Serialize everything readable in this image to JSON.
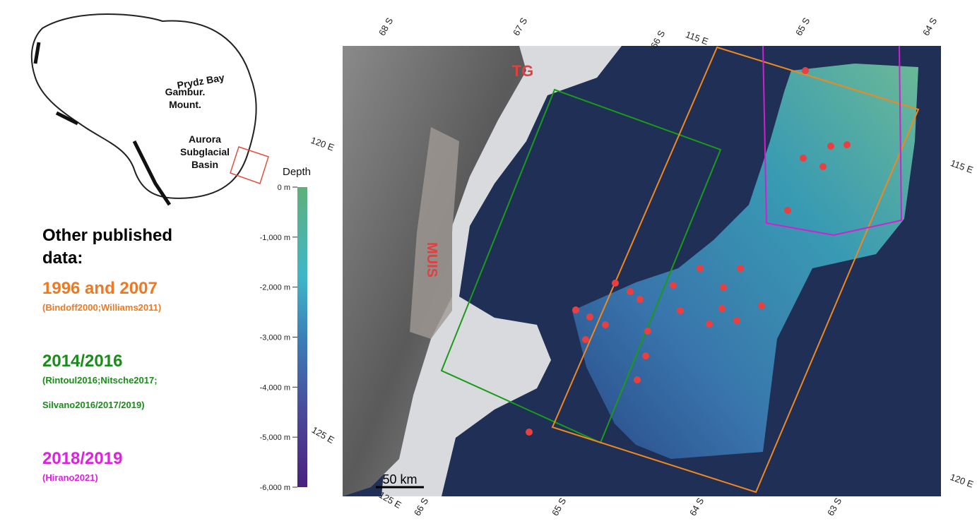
{
  "inset": {
    "labels": {
      "prydz": "Prydz Bay",
      "gambur": [
        "Gambur.",
        "Mount."
      ],
      "aurora": [
        "Aurora",
        "Subglacial",
        "Basin"
      ]
    }
  },
  "legend": {
    "title": [
      "Other published",
      "data:"
    ],
    "entries": [
      {
        "name": "1996 and 2007",
        "refs": [
          "(Bindoff2000;Williams2011)"
        ],
        "color": "#f07820"
      },
      {
        "name": "2014/2016",
        "refs": [
          "(Rintoul2016;Nitsche2017;",
          "Silvano2016/2017/2019)"
        ],
        "color": "#1a8c1a"
      },
      {
        "name": "2018/2019",
        "refs": [
          "(Hirano2021)"
        ],
        "color": "#e020e0"
      }
    ]
  },
  "colorbar": {
    "title": "Depth",
    "ticks": [
      {
        "value": 0,
        "label": "0 m"
      },
      {
        "value": -1000,
        "label": "-1,000 m"
      },
      {
        "value": -2000,
        "label": "-2,000 m"
      },
      {
        "value": -3000,
        "label": "-3,000 m"
      },
      {
        "value": -4000,
        "label": "-4,000 m"
      },
      {
        "value": -5000,
        "label": "-5,000 m"
      },
      {
        "value": -6000,
        "label": "-6,000 m"
      }
    ]
  },
  "map": {
    "labels": {
      "tg": "TG",
      "muis": "MUIS",
      "scale": "50 km"
    },
    "graticule": [
      "68 S",
      "67 S",
      "66 S",
      "115 E",
      "65 S",
      "64 S",
      "120 E",
      "115 E",
      "125 E",
      "120 E",
      "125 E",
      "66 S",
      "65 S",
      "64 S",
      "63 S"
    ]
  }
}
